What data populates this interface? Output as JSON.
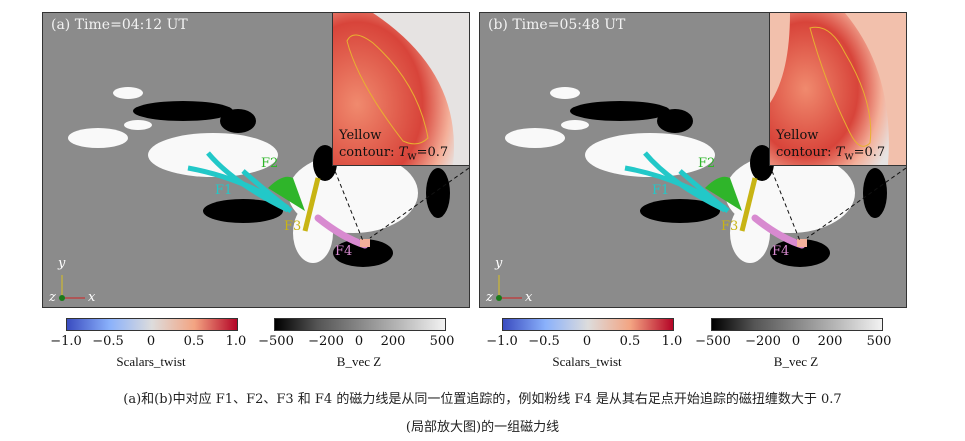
{
  "panels": [
    {
      "title": "(a) Time=04:12 UT",
      "inset_line1": "Yellow",
      "inset_line2_prefix": "contour: ",
      "inset_symbol": "T",
      "inset_sub": "w",
      "inset_value": "=0.7",
      "labels": {
        "f1": "F1",
        "f2": "F2",
        "f3": "F3",
        "f4": "F4"
      },
      "axes": {
        "y": "y",
        "z": "z",
        "x": "x"
      }
    },
    {
      "title": "(b) Time=05:48 UT",
      "inset_line1": "Yellow",
      "inset_line2_prefix": "contour: ",
      "inset_symbol": "T",
      "inset_sub": "w",
      "inset_value": "=0.7",
      "labels": {
        "f1": "F1",
        "f2": "F2",
        "f3": "F3",
        "f4": "F4"
      },
      "axes": {
        "y": "y",
        "z": "z",
        "x": "x"
      }
    }
  ],
  "colorbars": {
    "twist": {
      "title": "Scalars_twist",
      "ticks": [
        "−1.0",
        "−0.5",
        "0",
        "0.5",
        "1.0"
      ]
    },
    "bz": {
      "title": "B_vec Z",
      "ticks": [
        "−500",
        "−200",
        "0",
        "200",
        "500"
      ]
    }
  },
  "colors": {
    "F1": "#22c8c8",
    "F2": "#2fb52a",
    "F3": "#c8b414",
    "F4": "#d88ad0"
  },
  "caption": {
    "line1": "(a)和(b)中对应 F1、F2、F3 和 F4 的磁力线是从同一位置追踪的，例如粉线 F4 是从其右足点开始追踪的磁扭缠数大于 0.7",
    "line2": "(局部放大图)的一组磁力线"
  }
}
